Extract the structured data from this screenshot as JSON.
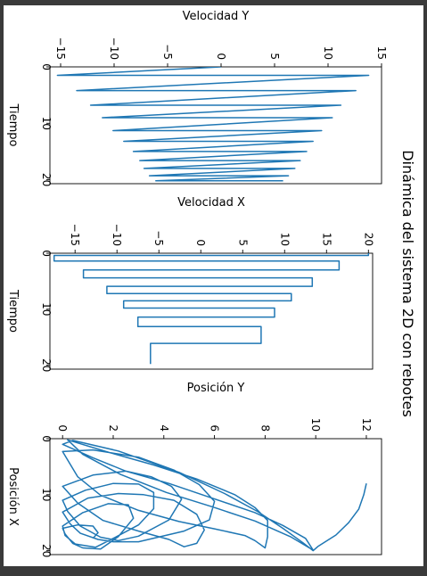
{
  "figure": {
    "suptitle": "Dinámica del sistema 2D con rebotes"
  },
  "chart_data": [
    {
      "type": "line",
      "panel": "velocidad-y",
      "title": "Velocidad Y",
      "xlabel": "",
      "ylabel": "Tiempo",
      "xlim": [
        -16,
        15
      ],
      "ylim": [
        0,
        20.7
      ],
      "x_ticks": [
        15,
        10,
        5,
        0,
        -5,
        -10,
        -15
      ],
      "x_tick_labels": [
        "15",
        "10",
        "5",
        "0",
        "−5",
        "−10",
        "−15"
      ],
      "y_ticks": [
        0,
        10,
        20
      ],
      "y_tick_labels": [
        "0",
        "10",
        "20"
      ],
      "series": [
        {
          "color": "#1f77b4",
          "x": [
            0,
            -15.3,
            13.8,
            -13.5,
            12.6,
            -12.2,
            11.2,
            -11.1,
            10.4,
            -10.1,
            9.4,
            -9.1,
            8.6,
            -8.2,
            8.0,
            -7.6,
            7.4,
            -7.2,
            6.9,
            -6.7,
            6.3,
            -6.1,
            5.8
          ],
          "y": [
            0,
            1.5,
            1.5,
            4.2,
            4.2,
            6.8,
            6.8,
            9.0,
            9.0,
            11.3,
            11.3,
            13.2,
            13.2,
            15.0,
            15.0,
            16.6,
            16.6,
            18.0,
            18.0,
            19.3,
            19.3,
            20.2,
            20.2
          ]
        }
      ]
    },
    {
      "type": "line",
      "panel": "velocidad-x",
      "title": "Velocidad X",
      "xlabel": "",
      "ylabel": "Tiempo",
      "xlim": [
        -18,
        20.5
      ],
      "ylim": [
        0,
        20.7
      ],
      "x_ticks": [
        20,
        15,
        10,
        5,
        0,
        -5,
        -10,
        -15
      ],
      "x_tick_labels": [
        "20",
        "15",
        "10",
        "5",
        "0",
        "−5",
        "−10",
        "−15"
      ],
      "y_ticks": [
        0,
        10,
        20
      ],
      "y_tick_labels": [
        "0",
        "10",
        "20"
      ],
      "series": [
        {
          "color": "#1f77b4",
          "x": [
            20,
            20,
            -17.5,
            -17.5,
            16.5,
            16.5,
            -14,
            -14,
            13.3,
            13.3,
            -11.2,
            -11.2,
            10.8,
            10.8,
            -9.2,
            -9.2,
            8.8,
            8.8,
            -7.5,
            -7.5,
            7.2,
            7.2,
            -6.0,
            -6.0
          ],
          "y": [
            0,
            0.4,
            0.4,
            1.4,
            1.4,
            3.0,
            3.0,
            4.4,
            4.4,
            5.9,
            5.9,
            7.2,
            7.2,
            8.5,
            8.5,
            9.8,
            9.8,
            11.4,
            11.4,
            13.1,
            13.1,
            16.1,
            16.1,
            19.8
          ]
        }
      ]
    },
    {
      "type": "line",
      "panel": "posicion",
      "title": "Posición Y",
      "xlabel": "",
      "ylabel": "Posición X",
      "xlim": [
        -0.5,
        12.6
      ],
      "ylim": [
        0,
        20.7
      ],
      "x_ticks": [
        0,
        2,
        4,
        6,
        8,
        10,
        12
      ],
      "x_tick_labels": [
        "0",
        "2",
        "4",
        "6",
        "8",
        "10",
        "12"
      ],
      "y_ticks": [
        0,
        10,
        20
      ],
      "y_tick_labels": [
        "0",
        "10",
        "20"
      ],
      "series": [
        {
          "color": "#1f77b4",
          "points": [
            [
              12.0,
              8.0
            ],
            [
              11.9,
              10.0
            ],
            [
              11.7,
              12.6
            ],
            [
              11.3,
              15.0
            ],
            [
              10.8,
              17.2
            ],
            [
              10.1,
              19.2
            ],
            [
              9.9,
              20.0
            ],
            [
              9.5,
              18.6
            ],
            [
              8.7,
              16.0
            ],
            [
              7.7,
              13.0
            ],
            [
              6.4,
              9.8
            ],
            [
              4.6,
              6.0
            ],
            [
              2.2,
              2.2
            ],
            [
              0.4,
              0.3
            ],
            [
              0.0,
              1.0
            ],
            [
              1.2,
              3.4
            ],
            [
              2.5,
              5.8
            ],
            [
              4.2,
              8.0
            ],
            [
              5.9,
              10.6
            ],
            [
              7.6,
              13.2
            ],
            [
              8.7,
              15.5
            ],
            [
              9.6,
              17.8
            ],
            [
              9.9,
              19.9
            ],
            [
              9.0,
              17.5
            ],
            [
              7.6,
              14.7
            ],
            [
              6.0,
              12.3
            ],
            [
              4.1,
              9.6
            ],
            [
              2.3,
              6.4
            ],
            [
              0.8,
              2.8
            ],
            [
              0.2,
              0.2
            ],
            [
              1.8,
              2.4
            ],
            [
              3.6,
              4.7
            ],
            [
              5.3,
              7.2
            ],
            [
              6.8,
              10.0
            ],
            [
              7.6,
              12.3
            ],
            [
              8.1,
              14.6
            ],
            [
              8.1,
              17.5
            ],
            [
              8.0,
              19.5
            ],
            [
              7.6,
              18.2
            ],
            [
              7.2,
              17.3
            ],
            [
              6.0,
              16.1
            ],
            [
              4.6,
              14.8
            ],
            [
              3.0,
              12.8
            ],
            [
              1.5,
              10.1
            ],
            [
              0.6,
              6.8
            ],
            [
              0.0,
              2.3
            ],
            [
              1.2,
              2.0
            ],
            [
              3.0,
              3.3
            ],
            [
              4.4,
              5.6
            ],
            [
              5.4,
              8.2
            ],
            [
              6.0,
              11.2
            ],
            [
              5.8,
              14.5
            ],
            [
              4.8,
              16.5
            ],
            [
              3.0,
              18.4
            ],
            [
              2.0,
              18.4
            ],
            [
              1.4,
              18.0
            ],
            [
              0.7,
              16.9
            ],
            [
              0.3,
              15.2
            ],
            [
              0.0,
              13.1
            ],
            [
              1.0,
              10.6
            ],
            [
              2.2,
              9.8
            ],
            [
              3.2,
              10.0
            ],
            [
              4.4,
              11.0
            ],
            [
              5.3,
              13.5
            ],
            [
              5.6,
              16.3
            ],
            [
              5.3,
              18.7
            ],
            [
              4.8,
              19.3
            ],
            [
              4.2,
              18.0
            ],
            [
              3.0,
              16.5
            ],
            [
              1.6,
              14.6
            ],
            [
              0.6,
              11.5
            ],
            [
              0.0,
              8.5
            ],
            [
              1.2,
              6.5
            ],
            [
              2.5,
              5.8
            ],
            [
              3.5,
              6.8
            ],
            [
              4.3,
              8.5
            ],
            [
              4.7,
              10.8
            ],
            [
              4.2,
              14.5
            ],
            [
              3.0,
              17.4
            ],
            [
              2.2,
              18.2
            ],
            [
              1.5,
              17.6
            ],
            [
              0.7,
              15.6
            ],
            [
              0.2,
              13.0
            ],
            [
              0.0,
              11.0
            ],
            [
              0.9,
              9.2
            ],
            [
              2.0,
              8.0
            ],
            [
              3.0,
              8.1
            ],
            [
              3.6,
              9.6
            ],
            [
              3.6,
              12.5
            ],
            [
              3.0,
              15.4
            ],
            [
              2.0,
              17.8
            ],
            [
              1.3,
              19.4
            ],
            [
              0.5,
              18.8
            ],
            [
              0.1,
              17.3
            ],
            [
              0.0,
              15.6
            ],
            [
              0.8,
              13.2
            ],
            [
              1.8,
              11.6
            ],
            [
              2.6,
              11.8
            ],
            [
              2.8,
              14.2
            ],
            [
              2.2,
              17.5
            ],
            [
              1.5,
              19.7
            ],
            [
              0.8,
              19.5
            ],
            [
              0.4,
              18.7
            ],
            [
              0.1,
              17.0
            ],
            [
              0.0,
              16.0
            ],
            [
              0.6,
              15.4
            ],
            [
              1.2,
              15.6
            ],
            [
              1.4,
              16.8
            ],
            [
              1.2,
              17.8
            ]
          ]
        }
      ]
    }
  ]
}
